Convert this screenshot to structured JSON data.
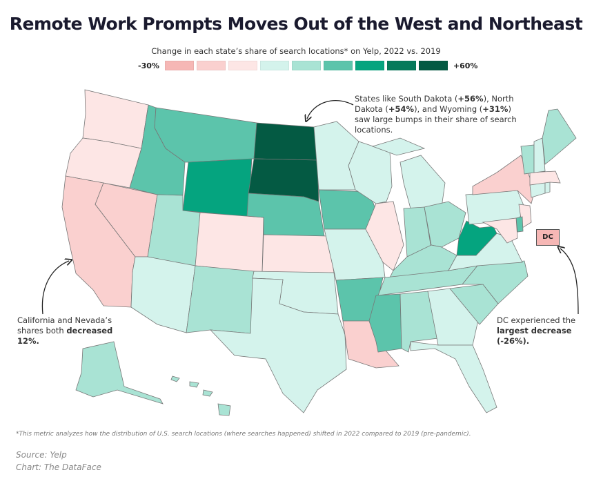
{
  "title": "Remote Work Prompts Moves Out of the West and Northeast",
  "subtitle": "Change in each state’s share of search locations* on Yelp, 2022 vs. 2019",
  "legend": {
    "min_label": "-30%",
    "max_label": "+60%",
    "colors": [
      "#f6b7b5",
      "#fad0cf",
      "#fde6e5",
      "#d4f3ec",
      "#a9e3d4",
      "#5cc4ab",
      "#05a47f",
      "#067a5b",
      "#045a43"
    ]
  },
  "annotations": {
    "dakota_prefix": "States like South Dakota (",
    "dakota_sd_val": "+56%",
    "dakota_mid1": "), North Dakota (",
    "dakota_nd_val": "+54%",
    "dakota_mid2": "), and Wyoming (",
    "dakota_wy_val": "+31%",
    "dakota_suffix": ") saw large bumps in their share of search locations.",
    "west_prefix": "California and Nevada’s shares both ",
    "west_bold": "decreased 12%.",
    "dc_prefix": "DC experienced the ",
    "dc_bold": "largest decrease (-26%).",
    "dc_label": "DC"
  },
  "map_data": {
    "WA": {
      "level": 2
    },
    "OR": {
      "level": 2
    },
    "CA": {
      "level": 1
    },
    "NV": {
      "level": 1
    },
    "ID": {
      "level": 5
    },
    "MT": {
      "level": 5
    },
    "WY": {
      "level": 6
    },
    "UT": {
      "level": 4
    },
    "AZ": {
      "level": 3
    },
    "CO": {
      "level": 2
    },
    "NM": {
      "level": 4
    },
    "ND": {
      "level": 8
    },
    "SD": {
      "level": 8
    },
    "NE": {
      "level": 5
    },
    "KS": {
      "level": 2
    },
    "OK": {
      "level": 3
    },
    "TX": {
      "level": 3
    },
    "MN": {
      "level": 3
    },
    "IA": {
      "level": 5
    },
    "MO": {
      "level": 3
    },
    "AR": {
      "level": 5
    },
    "LA": {
      "level": 1
    },
    "WI": {
      "level": 3
    },
    "IL": {
      "level": 2
    },
    "MI": {
      "level": 3
    },
    "IN": {
      "level": 4
    },
    "OH": {
      "level": 4
    },
    "KY": {
      "level": 4
    },
    "TN": {
      "level": 4
    },
    "MS": {
      "level": 5
    },
    "AL": {
      "level": 4
    },
    "GA": {
      "level": 3
    },
    "FL": {
      "level": 3
    },
    "SC": {
      "level": 4
    },
    "NC": {
      "level": 4
    },
    "VA": {
      "level": 3
    },
    "WV": {
      "level": 6
    },
    "PA": {
      "level": 3
    },
    "NY": {
      "level": 1
    },
    "VT": {
      "level": 4
    },
    "NH": {
      "level": 3
    },
    "ME": {
      "level": 4
    },
    "MA": {
      "level": 2
    },
    "CT": {
      "level": 3
    },
    "RI": {
      "level": 3
    },
    "NJ": {
      "level": 2
    },
    "DE": {
      "level": 5
    },
    "MD": {
      "level": 2
    },
    "DC": {
      "level": 0
    },
    "AK": {
      "level": 4
    },
    "HI": {
      "level": 4
    }
  },
  "footnote": "*This metric analyzes how the distribution of U.S. search locations (where searches happened) shifted in 2022 compared to 2019 (pre-pandemic).",
  "source": "Source: Yelp",
  "credit": "Chart: The DataFace"
}
